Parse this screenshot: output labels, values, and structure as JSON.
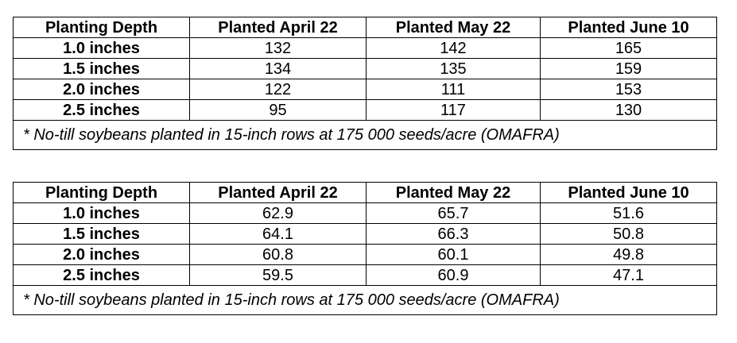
{
  "tables": [
    {
      "headers": [
        "Planting Depth",
        "Planted April 22",
        "Planted May 22",
        "Planted June 10"
      ],
      "rows": [
        {
          "depth": "1.0 inches",
          "april": "132",
          "may": "142",
          "june": "165"
        },
        {
          "depth": "1.5 inches",
          "april": "134",
          "may": "135",
          "june": "159"
        },
        {
          "depth": "2.0 inches",
          "april": "122",
          "may": "111",
          "june": "153"
        },
        {
          "depth": "2.5 inches",
          "april": "95",
          "may": "117",
          "june": "130"
        }
      ],
      "note": "* No-till soybeans planted in 15-inch rows at 175 000 seeds/acre (OMAFRA)"
    },
    {
      "headers": [
        "Planting Depth",
        "Planted April 22",
        "Planted May 22",
        "Planted June 10"
      ],
      "rows": [
        {
          "depth": "1.0 inches",
          "april": "62.9",
          "may": "65.7",
          "june": "51.6"
        },
        {
          "depth": "1.5 inches",
          "april": "64.1",
          "may": "66.3",
          "june": "50.8"
        },
        {
          "depth": "2.0 inches",
          "april": "60.8",
          "may": "60.1",
          "june": "49.8"
        },
        {
          "depth": "2.5 inches",
          "april": "59.5",
          "may": "60.9",
          "june": "47.1"
        }
      ],
      "note": "* No-till soybeans planted in 15-inch rows at 175 000 seeds/acre (OMAFRA)"
    }
  ]
}
